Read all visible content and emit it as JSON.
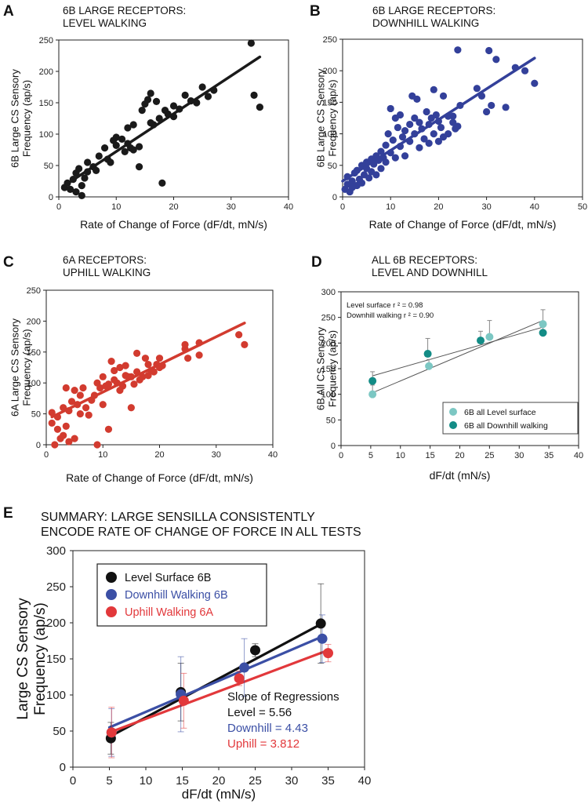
{
  "chart_data": [
    {
      "id": "A",
      "type": "scatter",
      "panel_letter": "A",
      "title_lines": [
        "6B LARGE RECEPTORS:",
        "LEVEL WALKING"
      ],
      "xlabel": "Rate of Change of Force (dF/dt, mN/s)",
      "ylabel_lines": [
        "6B Large CS Sensory",
        "Frequency (ap/s)"
      ],
      "xlim": [
        0,
        40
      ],
      "ylim": [
        0,
        250
      ],
      "xticks": [
        0,
        10,
        20,
        30,
        40
      ],
      "yticks": [
        0,
        50,
        100,
        150,
        200,
        250
      ],
      "color": "#1a1a1a",
      "points": [
        [
          1,
          15
        ],
        [
          1.5,
          22
        ],
        [
          2,
          12
        ],
        [
          2.5,
          28
        ],
        [
          3,
          38
        ],
        [
          3,
          8
        ],
        [
          3.5,
          45
        ],
        [
          4,
          18
        ],
        [
          4,
          2
        ],
        [
          4.5,
          30
        ],
        [
          5,
          55
        ],
        [
          5,
          40
        ],
        [
          6,
          48
        ],
        [
          6.5,
          42
        ],
        [
          7,
          65
        ],
        [
          8,
          78
        ],
        [
          8.5,
          60
        ],
        [
          9,
          55
        ],
        [
          9.5,
          90
        ],
        [
          10,
          95
        ],
        [
          10,
          82
        ],
        [
          11,
          92
        ],
        [
          11.5,
          72
        ],
        [
          12,
          85
        ],
        [
          12,
          110
        ],
        [
          12.5,
          78
        ],
        [
          13,
          115
        ],
        [
          13,
          75
        ],
        [
          14,
          80
        ],
        [
          14,
          48
        ],
        [
          14.5,
          138
        ],
        [
          15,
          148
        ],
        [
          15.5,
          155
        ],
        [
          16,
          118
        ],
        [
          16,
          165
        ],
        [
          16.5,
          115
        ],
        [
          17,
          152
        ],
        [
          17.5,
          125
        ],
        [
          18,
          22
        ],
        [
          18.5,
          138
        ],
        [
          19,
          132
        ],
        [
          20,
          145
        ],
        [
          20,
          128
        ],
        [
          21,
          140
        ],
        [
          22,
          162
        ],
        [
          23,
          153
        ],
        [
          24,
          150
        ],
        [
          25,
          175
        ],
        [
          26,
          160
        ],
        [
          27,
          170
        ],
        [
          33.5,
          245
        ],
        [
          34,
          162
        ],
        [
          35,
          143
        ]
      ],
      "fit": [
        [
          1,
          18
        ],
        [
          35,
          223
        ]
      ]
    },
    {
      "id": "B",
      "type": "scatter",
      "panel_letter": "B",
      "title_lines": [
        "6B LARGE RECEPTORS:",
        "DOWNHILL WALKING"
      ],
      "xlabel": "Rate of Change of Force (dF/dt, mN/s)",
      "ylabel_lines": [
        "6B Large CS Sensory",
        "Frequency (ap/s)"
      ],
      "xlim": [
        0,
        50
      ],
      "ylim": [
        0,
        250
      ],
      "xticks": [
        0,
        10,
        20,
        30,
        40,
        50
      ],
      "yticks": [
        0,
        50,
        100,
        150,
        200,
        250
      ],
      "color": "#33409a",
      "points": [
        [
          0.5,
          12
        ],
        [
          1,
          20
        ],
        [
          1,
          32
        ],
        [
          1.5,
          8
        ],
        [
          2,
          25
        ],
        [
          2,
          15
        ],
        [
          2.5,
          38
        ],
        [
          3,
          18
        ],
        [
          3,
          42
        ],
        [
          3.5,
          28
        ],
        [
          4,
          50
        ],
        [
          4,
          22
        ],
        [
          4.5,
          35
        ],
        [
          5,
          55
        ],
        [
          5,
          45
        ],
        [
          5.5,
          30
        ],
        [
          6,
          60
        ],
        [
          6,
          40
        ],
        [
          6.5,
          52
        ],
        [
          7,
          65
        ],
        [
          7,
          35
        ],
        [
          7.5,
          58
        ],
        [
          8,
          72
        ],
        [
          8,
          45
        ],
        [
          8.5,
          62
        ],
        [
          9,
          82
        ],
        [
          9,
          55
        ],
        [
          9.5,
          100
        ],
        [
          10,
          140
        ],
        [
          10,
          70
        ],
        [
          10.5,
          90
        ],
        [
          11,
          125
        ],
        [
          11,
          62
        ],
        [
          11.5,
          110
        ],
        [
          12,
          80
        ],
        [
          12,
          130
        ],
        [
          12.5,
          95
        ],
        [
          13,
          105
        ],
        [
          13,
          65
        ],
        [
          14,
          115
        ],
        [
          14,
          88
        ],
        [
          14.5,
          160
        ],
        [
          15,
          125
        ],
        [
          15,
          100
        ],
        [
          15.5,
          155
        ],
        [
          16,
          118
        ],
        [
          16,
          78
        ],
        [
          16.5,
          108
        ],
        [
          17,
          92
        ],
        [
          17.5,
          135
        ],
        [
          18,
          115
        ],
        [
          18,
          85
        ],
        [
          18.5,
          125
        ],
        [
          19,
          170
        ],
        [
          19,
          100
        ],
        [
          19.5,
          130
        ],
        [
          20,
          120
        ],
        [
          20,
          88
        ],
        [
          20.5,
          110
        ],
        [
          21,
          160
        ],
        [
          21,
          95
        ],
        [
          22,
          100
        ],
        [
          22,
          128
        ],
        [
          23,
          128
        ],
        [
          23,
          118
        ],
        [
          23.5,
          108
        ],
        [
          24,
          233
        ],
        [
          24,
          112
        ],
        [
          24.5,
          145
        ],
        [
          28,
          172
        ],
        [
          29,
          160
        ],
        [
          30,
          135
        ],
        [
          30.5,
          232
        ],
        [
          31,
          145
        ],
        [
          32,
          218
        ],
        [
          34,
          142
        ],
        [
          36,
          205
        ],
        [
          38,
          200
        ],
        [
          40,
          180
        ]
      ],
      "fit": [
        [
          0,
          25
        ],
        [
          40,
          220
        ]
      ]
    },
    {
      "id": "C",
      "type": "scatter",
      "panel_letter": "C",
      "title_lines": [
        "6A RECEPTORS:",
        "UPHILL WALKING"
      ],
      "xlabel": "Rate of Change of Force (dF/dt, mN/s)",
      "ylabel_lines": [
        "6A Large CS Sensory",
        "Frequency (ap/s)"
      ],
      "xlim": [
        0,
        40
      ],
      "ylim": [
        0,
        250
      ],
      "xticks": [
        0,
        10,
        20,
        30,
        40
      ],
      "yticks": [
        0,
        50,
        100,
        150,
        200,
        250
      ],
      "color": "#d23b2f",
      "points": [
        [
          1,
          52
        ],
        [
          1,
          35
        ],
        [
          1.5,
          0
        ],
        [
          2,
          45
        ],
        [
          2,
          25
        ],
        [
          2.5,
          10
        ],
        [
          3,
          60
        ],
        [
          3,
          15
        ],
        [
          3.5,
          92
        ],
        [
          3.5,
          30
        ],
        [
          4,
          55
        ],
        [
          4,
          5
        ],
        [
          4.5,
          70
        ],
        [
          5,
          88
        ],
        [
          5,
          10
        ],
        [
          5.5,
          65
        ],
        [
          6,
          50
        ],
        [
          6,
          80
        ],
        [
          6.5,
          92
        ],
        [
          7,
          60
        ],
        [
          7.5,
          48
        ],
        [
          8,
          72
        ],
        [
          8.5,
          80
        ],
        [
          9,
          0
        ],
        [
          9,
          100
        ],
        [
          9.5,
          92
        ],
        [
          10,
          65
        ],
        [
          10,
          110
        ],
        [
          10.5,
          95
        ],
        [
          11,
          98
        ],
        [
          11,
          25
        ],
        [
          11.5,
          135
        ],
        [
          12,
          105
        ],
        [
          12,
          120
        ],
        [
          12.5,
          100
        ],
        [
          13,
          125
        ],
        [
          13,
          88
        ],
        [
          13.5,
          95
        ],
        [
          14,
          112
        ],
        [
          14,
          128
        ],
        [
          14.5,
          110
        ],
        [
          15,
          60
        ],
        [
          15,
          110
        ],
        [
          15.5,
          98
        ],
        [
          16,
          148
        ],
        [
          16,
          118
        ],
        [
          16.5,
          105
        ],
        [
          17,
          110
        ],
        [
          17.5,
          140
        ],
        [
          18,
          112
        ],
        [
          18,
          130
        ],
        [
          18.5,
          120
        ],
        [
          19,
          118
        ],
        [
          19.5,
          130
        ],
        [
          20,
          140
        ],
        [
          20,
          125
        ],
        [
          20.5,
          128
        ],
        [
          24.5,
          155
        ],
        [
          24.5,
          162
        ],
        [
          25,
          140
        ],
        [
          27,
          165
        ],
        [
          27,
          145
        ],
        [
          34,
          178
        ],
        [
          35,
          162
        ]
      ],
      "fit": [
        [
          1,
          45
        ],
        [
          35,
          197
        ]
      ]
    },
    {
      "id": "D",
      "type": "scatter",
      "panel_letter": "D",
      "title_lines": [
        "ALL 6B RECEPTORS:",
        "LEVEL AND DOWNHILL"
      ],
      "xlabel": "dF/dt (mN/s)",
      "ylabel_lines": [
        "6B All CS Sensory",
        "Frequency (ap/s)"
      ],
      "xlim": [
        0,
        40
      ],
      "ylim": [
        0,
        300
      ],
      "xticks": [
        0,
        5,
        10,
        15,
        20,
        25,
        30,
        35,
        40
      ],
      "yticks": [
        0,
        50,
        100,
        150,
        200,
        250,
        300
      ],
      "annotations": [
        "Level surface r ² = 0.98",
        "Downhill walking r ² = 0.90"
      ],
      "series": [
        {
          "name": "6B all Level surface",
          "color": "#7cc7c3",
          "points": [
            [
              5.3,
              100,
              18
            ],
            [
              14.8,
              155,
              13
            ],
            [
              25,
              212,
              32
            ],
            [
              34,
              237,
              28
            ]
          ],
          "fit": [
            [
              5.3,
              103
            ],
            [
              34,
              244
            ]
          ]
        },
        {
          "name": "6B all Downhill walking",
          "color": "#138c86",
          "points": [
            [
              5.3,
              126,
              18
            ],
            [
              14.6,
              179,
              30
            ],
            [
              23.5,
              205,
              18
            ],
            [
              34,
              220,
              17
            ]
          ],
          "fit": [
            [
              5.3,
              136
            ],
            [
              34,
              231
            ]
          ]
        }
      ]
    },
    {
      "id": "E",
      "type": "scatter",
      "panel_letter": "E",
      "title_lines": [
        "SUMMARY: LARGE SENSILLA CONSISTENTLY",
        "ENCODE RATE OF CHANGE OF FORCE IN ALL TESTS"
      ],
      "xlabel": "dF/dt (mN/s)",
      "ylabel_lines": [
        "Large CS Sensory",
        "Frequency (ap/s)"
      ],
      "xlim": [
        0,
        40
      ],
      "ylim": [
        0,
        300
      ],
      "xticks": [
        0,
        5,
        10,
        15,
        20,
        25,
        30,
        35,
        40
      ],
      "yticks": [
        0,
        50,
        100,
        150,
        200,
        250,
        300
      ],
      "series": [
        {
          "name": "Level Surface 6B",
          "color": "#111111",
          "legend_text_color": "#111111",
          "points": [
            [
              5.2,
              40,
              22
            ],
            [
              14.8,
              104,
              40
            ],
            [
              25,
              162,
              9
            ],
            [
              34,
              199,
              55
            ]
          ],
          "fit": [
            [
              5,
              42
            ],
            [
              34,
              198
            ]
          ]
        },
        {
          "name": "Downhill Walking 6B",
          "color": "#3b4fa5",
          "legend_text_color": "#3b4fa5",
          "points": [
            [
              5.3,
              48,
              33
            ],
            [
              14.8,
              101,
              52
            ],
            [
              23.5,
              138,
              40
            ],
            [
              34.2,
              178,
              33
            ]
          ],
          "fit": [
            [
              5,
              55
            ],
            [
              34,
              180
            ]
          ]
        },
        {
          "name": "Uphill Walking 6A",
          "color": "#e2383b",
          "legend_text_color": "#e2383b",
          "points": [
            [
              5.3,
              48,
              35
            ],
            [
              15.2,
              92,
              38
            ],
            [
              22.8,
              123,
              10
            ],
            [
              35,
              158,
              12
            ]
          ],
          "fit": [
            [
              5,
              48
            ],
            [
              35,
              162
            ]
          ]
        }
      ],
      "slope_text": {
        "heading": "Slope of Regressions",
        "level": "Level = 5.56",
        "downhill": "Downhill = 4.43",
        "uphill": "Uphill = 3.812"
      }
    }
  ]
}
